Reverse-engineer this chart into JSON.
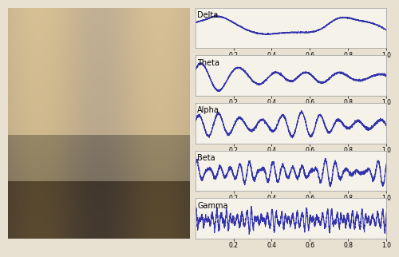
{
  "bands": [
    "Delta",
    "Theta",
    "Alpha",
    "Beta",
    "Gamma"
  ],
  "line_color": "#3333aa",
  "line_width": 0.8,
  "bg_color": "#e8e0d0",
  "plot_bg": "#f5f2ea",
  "x_ticks": [
    0.2,
    0.4,
    0.6,
    0.8,
    1.0
  ],
  "x_lim": [
    0.0,
    1.0
  ],
  "label_fontsize": 7,
  "tick_fontsize": 5.5
}
